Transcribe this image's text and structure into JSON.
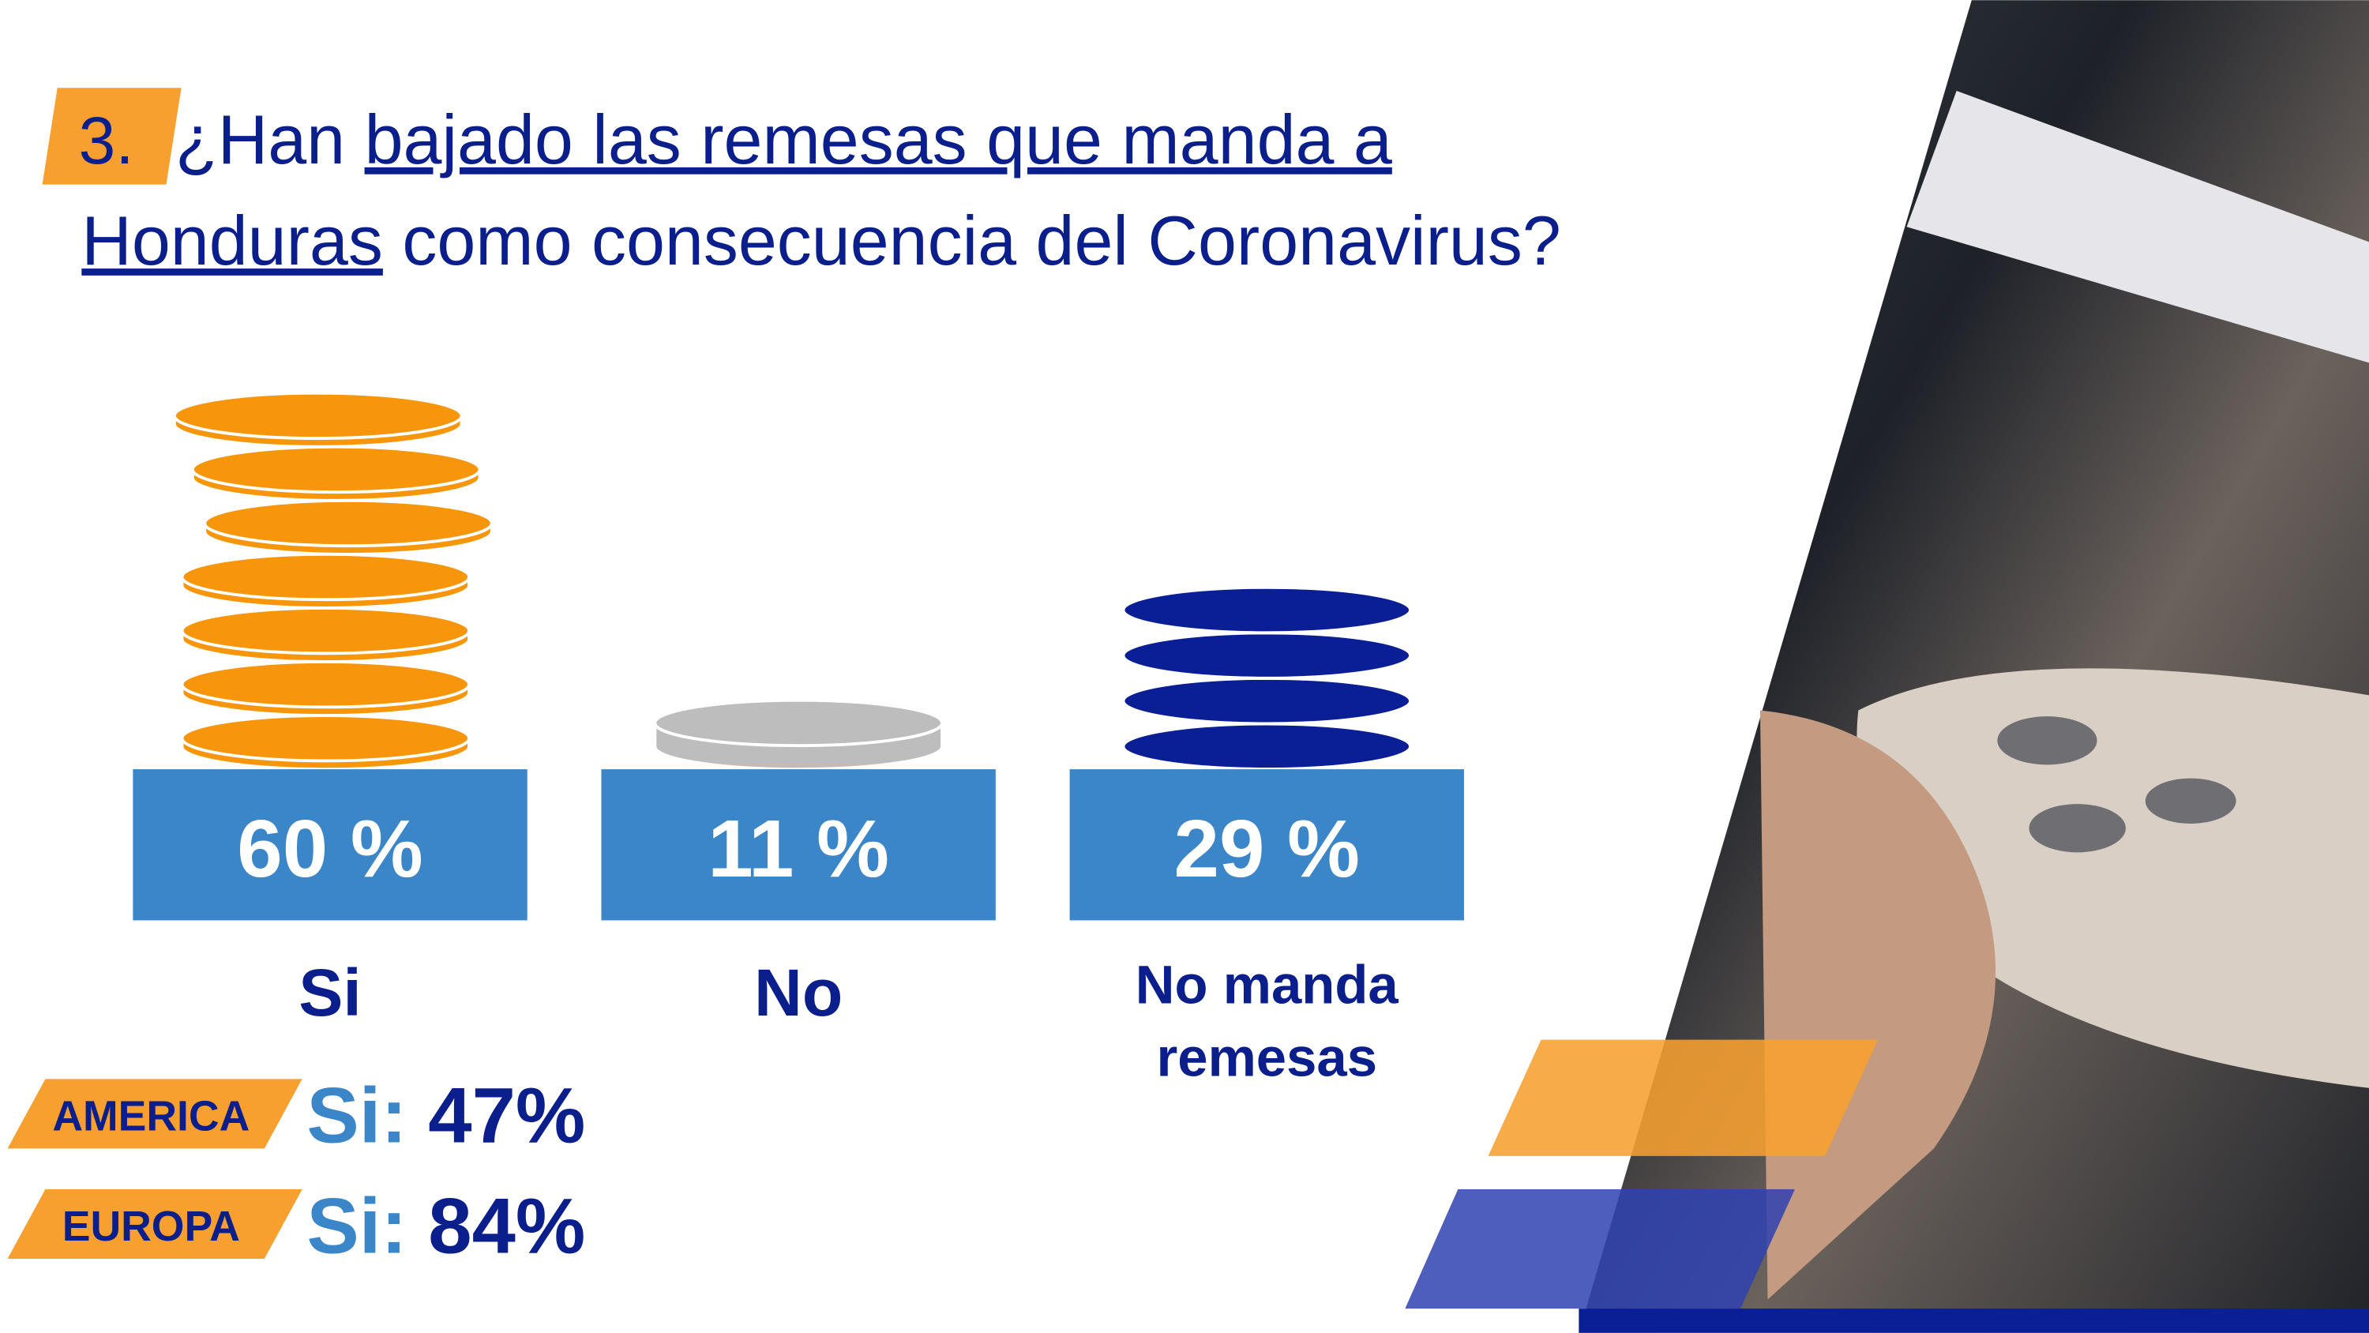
{
  "badge": "3.",
  "title_parts": [
    "¿Han ",
    "bajado las remesas que manda a",
    "Honduras",
    " como consecuencia del Coronavirus?"
  ],
  "chart_data": {
    "type": "bar",
    "categories": [
      "Si",
      "No",
      "No manda remesas"
    ],
    "values": [
      60,
      11,
      29
    ],
    "value_labels": [
      "60 %",
      "11 %",
      "29 %"
    ],
    "colors": [
      "#f7960a",
      "#bdbdbd",
      "#0a1e96"
    ],
    "box_color": "#3a86c8"
  },
  "regions": [
    {
      "name": "AMERICA",
      "prefix": "Si:",
      "value": "47%"
    },
    {
      "name": "EUROPA",
      "prefix": "Si:",
      "value": "84%"
    }
  ]
}
